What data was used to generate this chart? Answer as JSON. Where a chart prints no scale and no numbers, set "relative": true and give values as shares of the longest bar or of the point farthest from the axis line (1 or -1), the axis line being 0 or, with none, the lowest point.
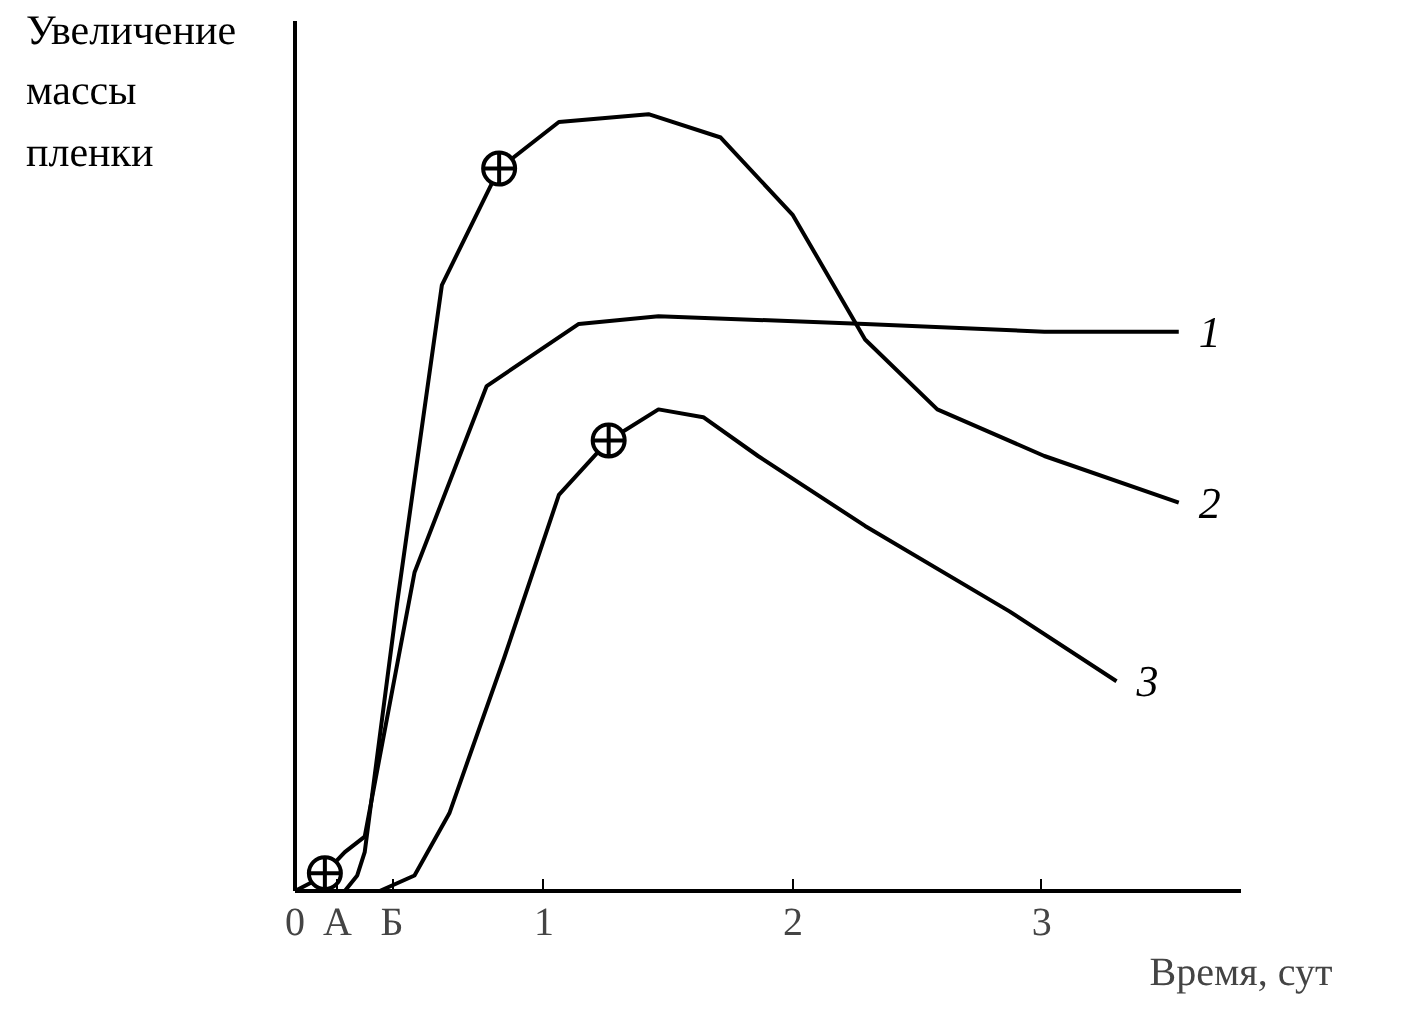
{
  "chart_data": {
    "type": "line",
    "relative": true,
    "xlabel": "Время, сут",
    "ylabel": "Увеличение массы пленки",
    "xlim": [
      0,
      3.8
    ],
    "xticks": [
      0,
      {
        "value": 0.17,
        "label": "А"
      },
      {
        "value": 0.39,
        "label": "Б"
      },
      1,
      2,
      3
    ],
    "tick_labels": "x",
    "grid": false,
    "legend": false,
    "marker": "none",
    "line_style": "solid",
    "series": [
      {
        "name": "1",
        "color": "#000000",
        "x": [
          0,
          0.06,
          0.12,
          0.2,
          0.28,
          0.48,
          0.77,
          1.14,
          1.46,
          2.29,
          3.01,
          3.55
        ],
        "values": [
          0,
          0.01,
          0.023,
          0.05,
          0.07,
          0.41,
          0.65,
          0.73,
          0.74,
          0.73,
          0.72,
          0.72
        ]
      },
      {
        "name": "2",
        "color": "#000000",
        "x": [
          0.2,
          0.25,
          0.28,
          0.41,
          0.59,
          0.82,
          1.06,
          1.42,
          1.71,
          2.0,
          2.29,
          2.58,
          3.01,
          3.55
        ],
        "values": [
          0,
          0.02,
          0.05,
          0.37,
          0.78,
          0.93,
          0.99,
          1.0,
          0.97,
          0.87,
          0.71,
          0.62,
          0.56,
          0.5
        ]
      },
      {
        "name": "3",
        "color": "#000000",
        "x": [
          0.34,
          0.48,
          0.62,
          0.84,
          1.06,
          1.26,
          1.46,
          1.64,
          1.86,
          2.29,
          2.87,
          3.3
        ],
        "values": [
          0,
          0.02,
          0.1,
          0.3,
          0.51,
          0.58,
          0.62,
          0.61,
          0.56,
          0.47,
          0.36,
          0.27
        ]
      },
      {
        "type": "scatter",
        "color": "#000000",
        "marker": "circle",
        "x": [
          0.12,
          0.82,
          1.26
        ],
        "values": [
          0.023,
          0.93,
          0.58
        ]
      }
    ]
  }
}
